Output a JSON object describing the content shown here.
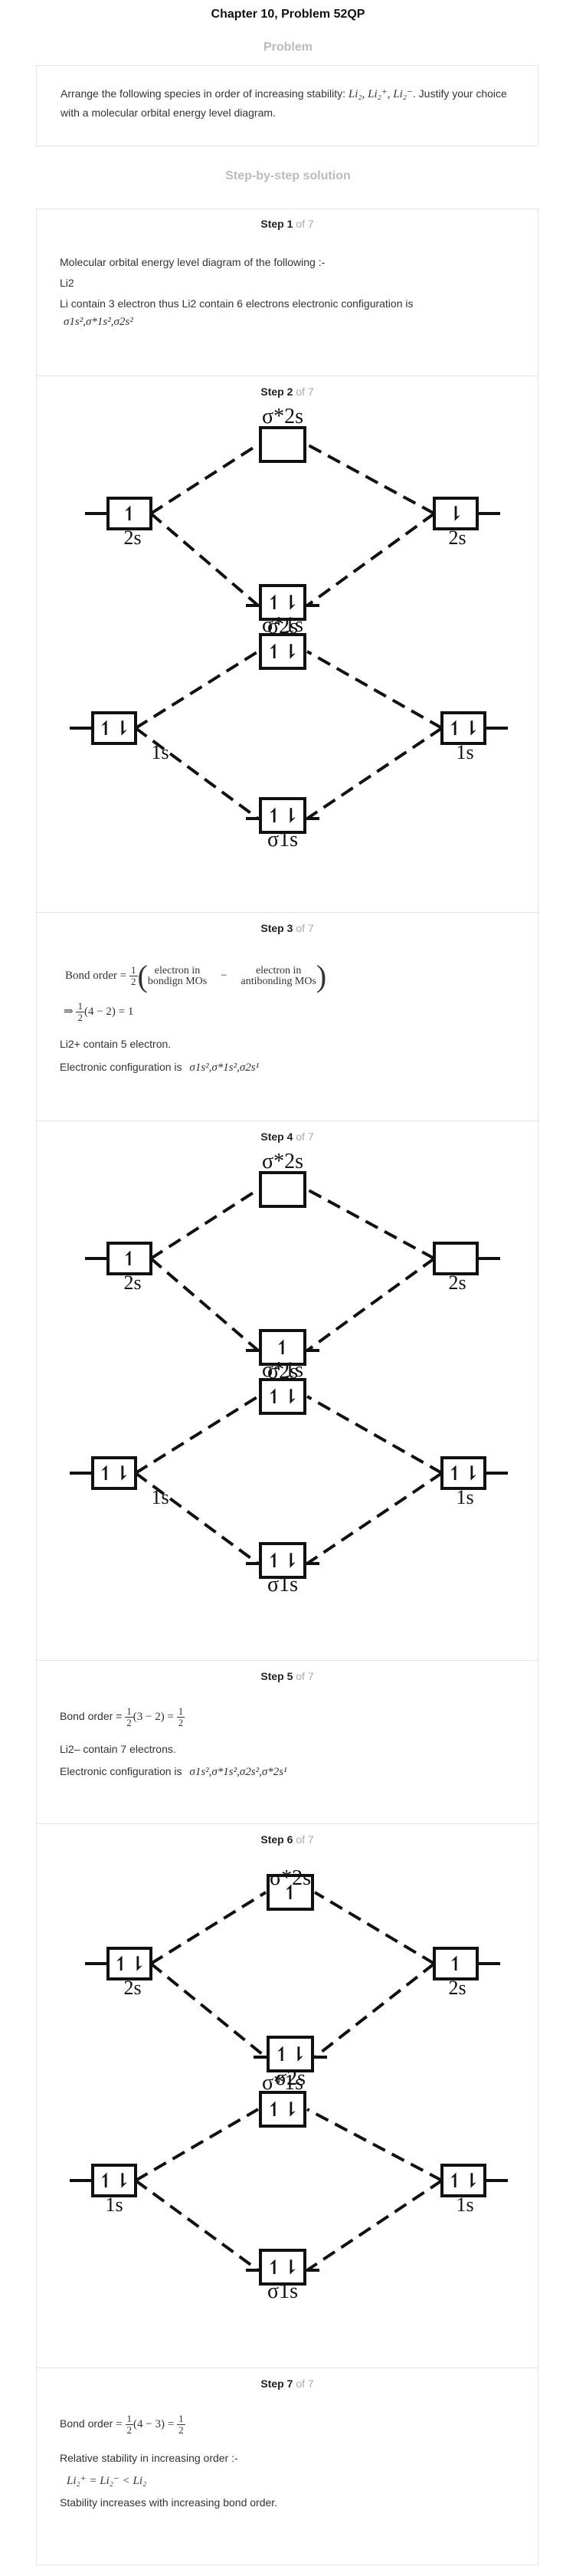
{
  "header": {
    "title": "Chapter 10, Problem 52QP",
    "problem_label": "Problem",
    "solution_label": "Step-by-step solution"
  },
  "problem": {
    "text_before": "Arrange the following species in order of increasing stability:",
    "species": "Li₂, Li₂⁺, Li₂⁻",
    "text_after": ". Justify your choice with a molecular orbital energy level diagram."
  },
  "steps": [
    {
      "label": "Step 1",
      "of": "of 7",
      "lines": [
        "Molecular orbital energy level diagram of the following :-",
        "Li2",
        "Li contain 3 electron thus Li2 contain 6 electrons electronic configuration is"
      ],
      "config": "σ1s²,σ*1s²,σ2s²"
    },
    {
      "label": "Step 2",
      "of": "of 7"
    },
    {
      "label": "Step 3",
      "of": "of 7",
      "bond_order_label": "Bond order =",
      "half_num": "1",
      "half_den": "2",
      "bracket_left_top": "electron in",
      "bracket_left_bot": "bondign MOs",
      "minus": "−",
      "bracket_right_top": "electron in",
      "bracket_right_bot": "antibonding MOs",
      "implies_expr": "(4 − 2) = 1",
      "implies": "⇒",
      "line1": "Li2+ contain 5 electron.",
      "config_label": "Electronic configuration is",
      "config": "σ1s²,σ*1s²,σ2s¹"
    },
    {
      "label": "Step 4",
      "of": "of 7"
    },
    {
      "label": "Step 5",
      "of": "of 7",
      "bond_order_label": "Bond order =",
      "expr_mid": "(3 − 2) =",
      "line1": "Li2– contain 7 electrons.",
      "config_label": "Electronic configuration is",
      "config": "σ1s²,σ*1s²,σ2s²,σ*2s¹"
    },
    {
      "label": "Step 6",
      "of": "of 7"
    },
    {
      "label": "Step 7",
      "of": "of 7",
      "bond_order_label": "Bond order",
      "expr_mid": "(4 − 3) =",
      "line1": "Relative stability in increasing order :-",
      "order": "Li₂⁺ = Li₂⁻ < Li₂",
      "line2": "Stability increases with increasing bond order."
    }
  ],
  "diagram_labels": {
    "s2_star": "σ*2s",
    "s2": "σ2s",
    "s1_star": "σ*1s",
    "s1": "σ1s",
    "ao_2s": "2s",
    "ao_1s": "1s"
  },
  "spins": {
    "up": "↿",
    "down": "⇂",
    "pair": "↿⇂"
  }
}
